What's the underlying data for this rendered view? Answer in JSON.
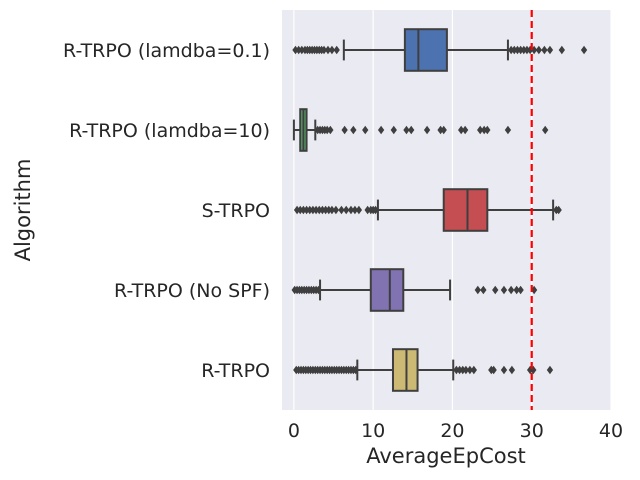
{
  "chart_data": {
    "type": "boxplot",
    "orientation": "horizontal",
    "xlabel": "AverageEpCost",
    "ylabel": "Algorithm",
    "xlim": [
      -1.5,
      40
    ],
    "xticks": [
      0,
      10,
      20,
      30,
      40
    ],
    "grid": true,
    "reference_line": {
      "value": 30,
      "color": "#ff0000",
      "style": "dashed"
    },
    "categories": [
      "R-TRPO (lamdba=0.1)",
      "R-TRPO (lamdba=10)",
      "S-TRPO",
      "R-TRPO (No SPF)",
      "R-TRPO"
    ],
    "boxes": [
      {
        "name": "R-TRPO (lamdba=0.1)",
        "color": "#4c72b0",
        "whislo": 6.3,
        "q1": 14.0,
        "med": 15.7,
        "q3": 19.3,
        "whishi": 27.0,
        "fliers": [
          0.2,
          0.6,
          1.0,
          1.4,
          1.7,
          2.0,
          2.3,
          2.6,
          2.9,
          3.2,
          3.5,
          3.8,
          4.3,
          4.8,
          5.4,
          27.4,
          27.8,
          28.2,
          28.6,
          29.0,
          29.4,
          29.8,
          30.3,
          30.9,
          31.6,
          32.3,
          33.8,
          36.6
        ]
      },
      {
        "name": "R-TRPO (lamdba=10)",
        "color": "#55a868",
        "whislo": 0.0,
        "q1": 0.8,
        "med": 1.2,
        "q3": 1.6,
        "whishi": 2.7,
        "fliers": [
          3.0,
          3.3,
          3.6,
          3.9,
          4.2,
          4.6,
          6.4,
          7.5,
          9.0,
          11.0,
          12.6,
          14.2,
          14.8,
          16.8,
          18.5,
          18.9,
          21.1,
          21.6,
          23.5,
          24.0,
          24.4,
          27.0,
          31.7
        ]
      },
      {
        "name": "S-TRPO",
        "color": "#c44e52",
        "whislo": 10.6,
        "q1": 18.9,
        "med": 21.9,
        "q3": 24.4,
        "whishi": 32.7,
        "fliers": [
          0.4,
          0.8,
          1.2,
          1.6,
          2.0,
          2.4,
          2.8,
          3.2,
          3.6,
          4.0,
          4.4,
          4.8,
          5.3,
          6.0,
          6.6,
          7.2,
          7.7,
          8.2,
          9.3,
          9.7,
          10.0,
          10.3,
          33.1,
          33.4
        ]
      },
      {
        "name": "R-TRPO (No SPF)",
        "color": "#8172b2",
        "whislo": 3.3,
        "q1": 9.7,
        "med": 12.1,
        "q3": 13.8,
        "whishi": 19.7,
        "fliers": [
          0.1,
          0.4,
          0.7,
          1.0,
          1.3,
          1.6,
          1.9,
          2.2,
          2.5,
          2.8,
          3.1,
          23.2,
          23.9,
          25.4,
          26.5,
          27.4,
          28.1,
          28.6,
          30.3
        ]
      },
      {
        "name": "R-TRPO",
        "color": "#ccb974",
        "whislo": 8.0,
        "q1": 12.5,
        "med": 14.2,
        "q3": 15.6,
        "whishi": 20.1,
        "fliers": [
          0.3,
          0.6,
          0.9,
          1.2,
          1.5,
          1.8,
          2.1,
          2.4,
          2.7,
          3.0,
          3.3,
          3.6,
          3.9,
          4.2,
          4.5,
          4.8,
          5.1,
          5.4,
          5.7,
          6.0,
          6.3,
          6.6,
          6.9,
          7.2,
          7.5,
          7.8,
          20.5,
          20.9,
          21.3,
          21.7,
          22.2,
          22.7,
          24.9,
          25.2,
          26.5,
          27.5,
          29.8,
          30.2,
          32.3
        ]
      }
    ]
  }
}
